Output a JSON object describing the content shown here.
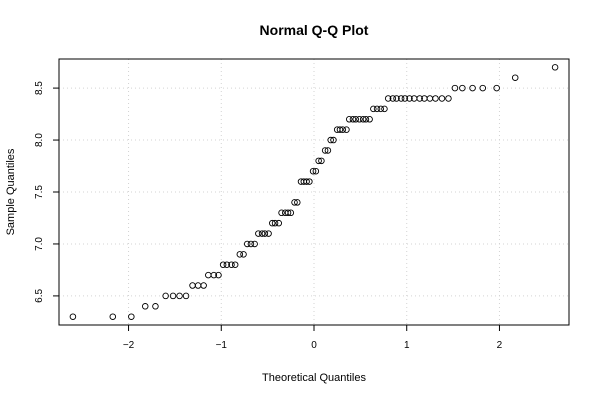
{
  "chart_data": {
    "type": "scatter",
    "title": "Normal Q-Q Plot",
    "xlabel": "Theoretical Quantiles",
    "ylabel": "Sample Quantiles",
    "xlim": [
      -2.75,
      2.75
    ],
    "ylim": [
      6.22,
      8.78
    ],
    "x_ticks": [
      -2,
      -1,
      0,
      1,
      2
    ],
    "y_ticks": [
      6.5,
      7.0,
      7.5,
      8.0,
      8.5
    ],
    "x_tick_labels": [
      "−2",
      "−1",
      "0",
      "1",
      "2"
    ],
    "y_tick_labels": [
      "6.5",
      "7.0",
      "7.5",
      "8.0",
      "8.5"
    ],
    "grid": true,
    "point_style": "open-circle",
    "points": [
      {
        "x": -2.6,
        "y": 6.3
      },
      {
        "x": -2.17,
        "y": 6.3
      },
      {
        "x": -1.97,
        "y": 6.3
      },
      {
        "x": -1.82,
        "y": 6.4
      },
      {
        "x": -1.71,
        "y": 6.4
      },
      {
        "x": -1.6,
        "y": 6.5
      },
      {
        "x": -1.52,
        "y": 6.5
      },
      {
        "x": -1.45,
        "y": 6.5
      },
      {
        "x": -1.38,
        "y": 6.5
      },
      {
        "x": -1.31,
        "y": 6.6
      },
      {
        "x": -1.25,
        "y": 6.6
      },
      {
        "x": -1.19,
        "y": 6.6
      },
      {
        "x": -1.14,
        "y": 6.7
      },
      {
        "x": -1.08,
        "y": 6.7
      },
      {
        "x": -1.03,
        "y": 6.7
      },
      {
        "x": -0.98,
        "y": 6.8
      },
      {
        "x": -0.94,
        "y": 6.8
      },
      {
        "x": -0.89,
        "y": 6.8
      },
      {
        "x": -0.85,
        "y": 6.8
      },
      {
        "x": -0.8,
        "y": 6.9
      },
      {
        "x": -0.76,
        "y": 6.9
      },
      {
        "x": -0.72,
        "y": 7.0
      },
      {
        "x": -0.68,
        "y": 7.0
      },
      {
        "x": -0.64,
        "y": 7.0
      },
      {
        "x": -0.6,
        "y": 7.1
      },
      {
        "x": -0.56,
        "y": 7.1
      },
      {
        "x": -0.53,
        "y": 7.1
      },
      {
        "x": -0.49,
        "y": 7.1
      },
      {
        "x": -0.45,
        "y": 7.2
      },
      {
        "x": -0.42,
        "y": 7.2
      },
      {
        "x": -0.38,
        "y": 7.2
      },
      {
        "x": -0.35,
        "y": 7.3
      },
      {
        "x": -0.31,
        "y": 7.3
      },
      {
        "x": -0.28,
        "y": 7.3
      },
      {
        "x": -0.25,
        "y": 7.3
      },
      {
        "x": -0.21,
        "y": 7.4
      },
      {
        "x": -0.18,
        "y": 7.4
      },
      {
        "x": -0.14,
        "y": 7.6
      },
      {
        "x": -0.11,
        "y": 7.6
      },
      {
        "x": -0.08,
        "y": 7.6
      },
      {
        "x": -0.05,
        "y": 7.6
      },
      {
        "x": -0.01,
        "y": 7.7
      },
      {
        "x": 0.02,
        "y": 7.7
      },
      {
        "x": 0.05,
        "y": 7.8
      },
      {
        "x": 0.08,
        "y": 7.8
      },
      {
        "x": 0.12,
        "y": 7.9
      },
      {
        "x": 0.15,
        "y": 7.9
      },
      {
        "x": 0.18,
        "y": 8.0
      },
      {
        "x": 0.21,
        "y": 8.0
      },
      {
        "x": 0.25,
        "y": 8.1
      },
      {
        "x": 0.28,
        "y": 8.1
      },
      {
        "x": 0.31,
        "y": 8.1
      },
      {
        "x": 0.35,
        "y": 8.1
      },
      {
        "x": 0.38,
        "y": 8.2
      },
      {
        "x": 0.42,
        "y": 8.2
      },
      {
        "x": 0.45,
        "y": 8.2
      },
      {
        "x": 0.49,
        "y": 8.2
      },
      {
        "x": 0.53,
        "y": 8.2
      },
      {
        "x": 0.56,
        "y": 8.2
      },
      {
        "x": 0.6,
        "y": 8.2
      },
      {
        "x": 0.64,
        "y": 8.3
      },
      {
        "x": 0.68,
        "y": 8.3
      },
      {
        "x": 0.72,
        "y": 8.3
      },
      {
        "x": 0.76,
        "y": 8.3
      },
      {
        "x": 0.8,
        "y": 8.4
      },
      {
        "x": 0.85,
        "y": 8.4
      },
      {
        "x": 0.89,
        "y": 8.4
      },
      {
        "x": 0.94,
        "y": 8.4
      },
      {
        "x": 0.98,
        "y": 8.4
      },
      {
        "x": 1.03,
        "y": 8.4
      },
      {
        "x": 1.08,
        "y": 8.4
      },
      {
        "x": 1.14,
        "y": 8.4
      },
      {
        "x": 1.19,
        "y": 8.4
      },
      {
        "x": 1.25,
        "y": 8.4
      },
      {
        "x": 1.31,
        "y": 8.4
      },
      {
        "x": 1.38,
        "y": 8.4
      },
      {
        "x": 1.45,
        "y": 8.4
      },
      {
        "x": 1.52,
        "y": 8.5
      },
      {
        "x": 1.6,
        "y": 8.5
      },
      {
        "x": 1.71,
        "y": 8.5
      },
      {
        "x": 1.82,
        "y": 8.5
      },
      {
        "x": 1.97,
        "y": 8.5
      },
      {
        "x": 2.17,
        "y": 8.6
      },
      {
        "x": 2.6,
        "y": 8.7
      }
    ]
  }
}
